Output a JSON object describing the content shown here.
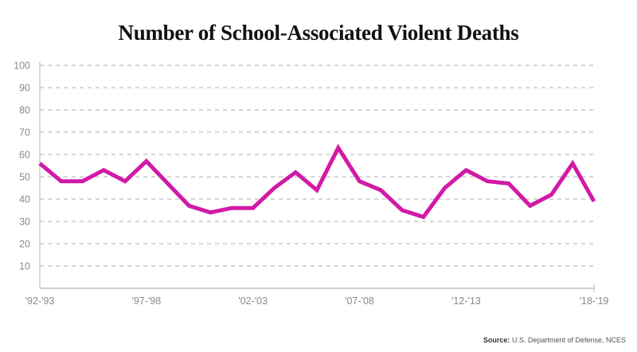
{
  "chart_data": {
    "type": "line",
    "title": "Number of School-Associated Violent Deaths",
    "xlabel": "",
    "ylabel": "",
    "ylim": [
      0,
      100
    ],
    "yticks": [
      10,
      20,
      30,
      40,
      50,
      60,
      70,
      80,
      90,
      100
    ],
    "grid": true,
    "x_tick_labels": [
      {
        "index": 0,
        "label": "'92-'93"
      },
      {
        "index": 5,
        "label": "'97-'98"
      },
      {
        "index": 10,
        "label": "'02-'03"
      },
      {
        "index": 15,
        "label": "'07-'08"
      },
      {
        "index": 20,
        "label": "'12-'13"
      },
      {
        "index": 26,
        "label": "'18-'19"
      }
    ],
    "line_color": "#d11aa6",
    "series": [
      {
        "values": [
          56,
          48,
          48,
          53,
          48,
          57,
          47,
          37,
          34,
          36,
          36,
          45,
          52,
          44,
          63,
          48,
          44,
          35,
          32,
          45,
          53,
          48,
          47,
          37,
          42,
          56,
          39
        ]
      }
    ]
  },
  "source": {
    "label": "Source:",
    "text": " U.S. Department of Defense, NCES"
  }
}
